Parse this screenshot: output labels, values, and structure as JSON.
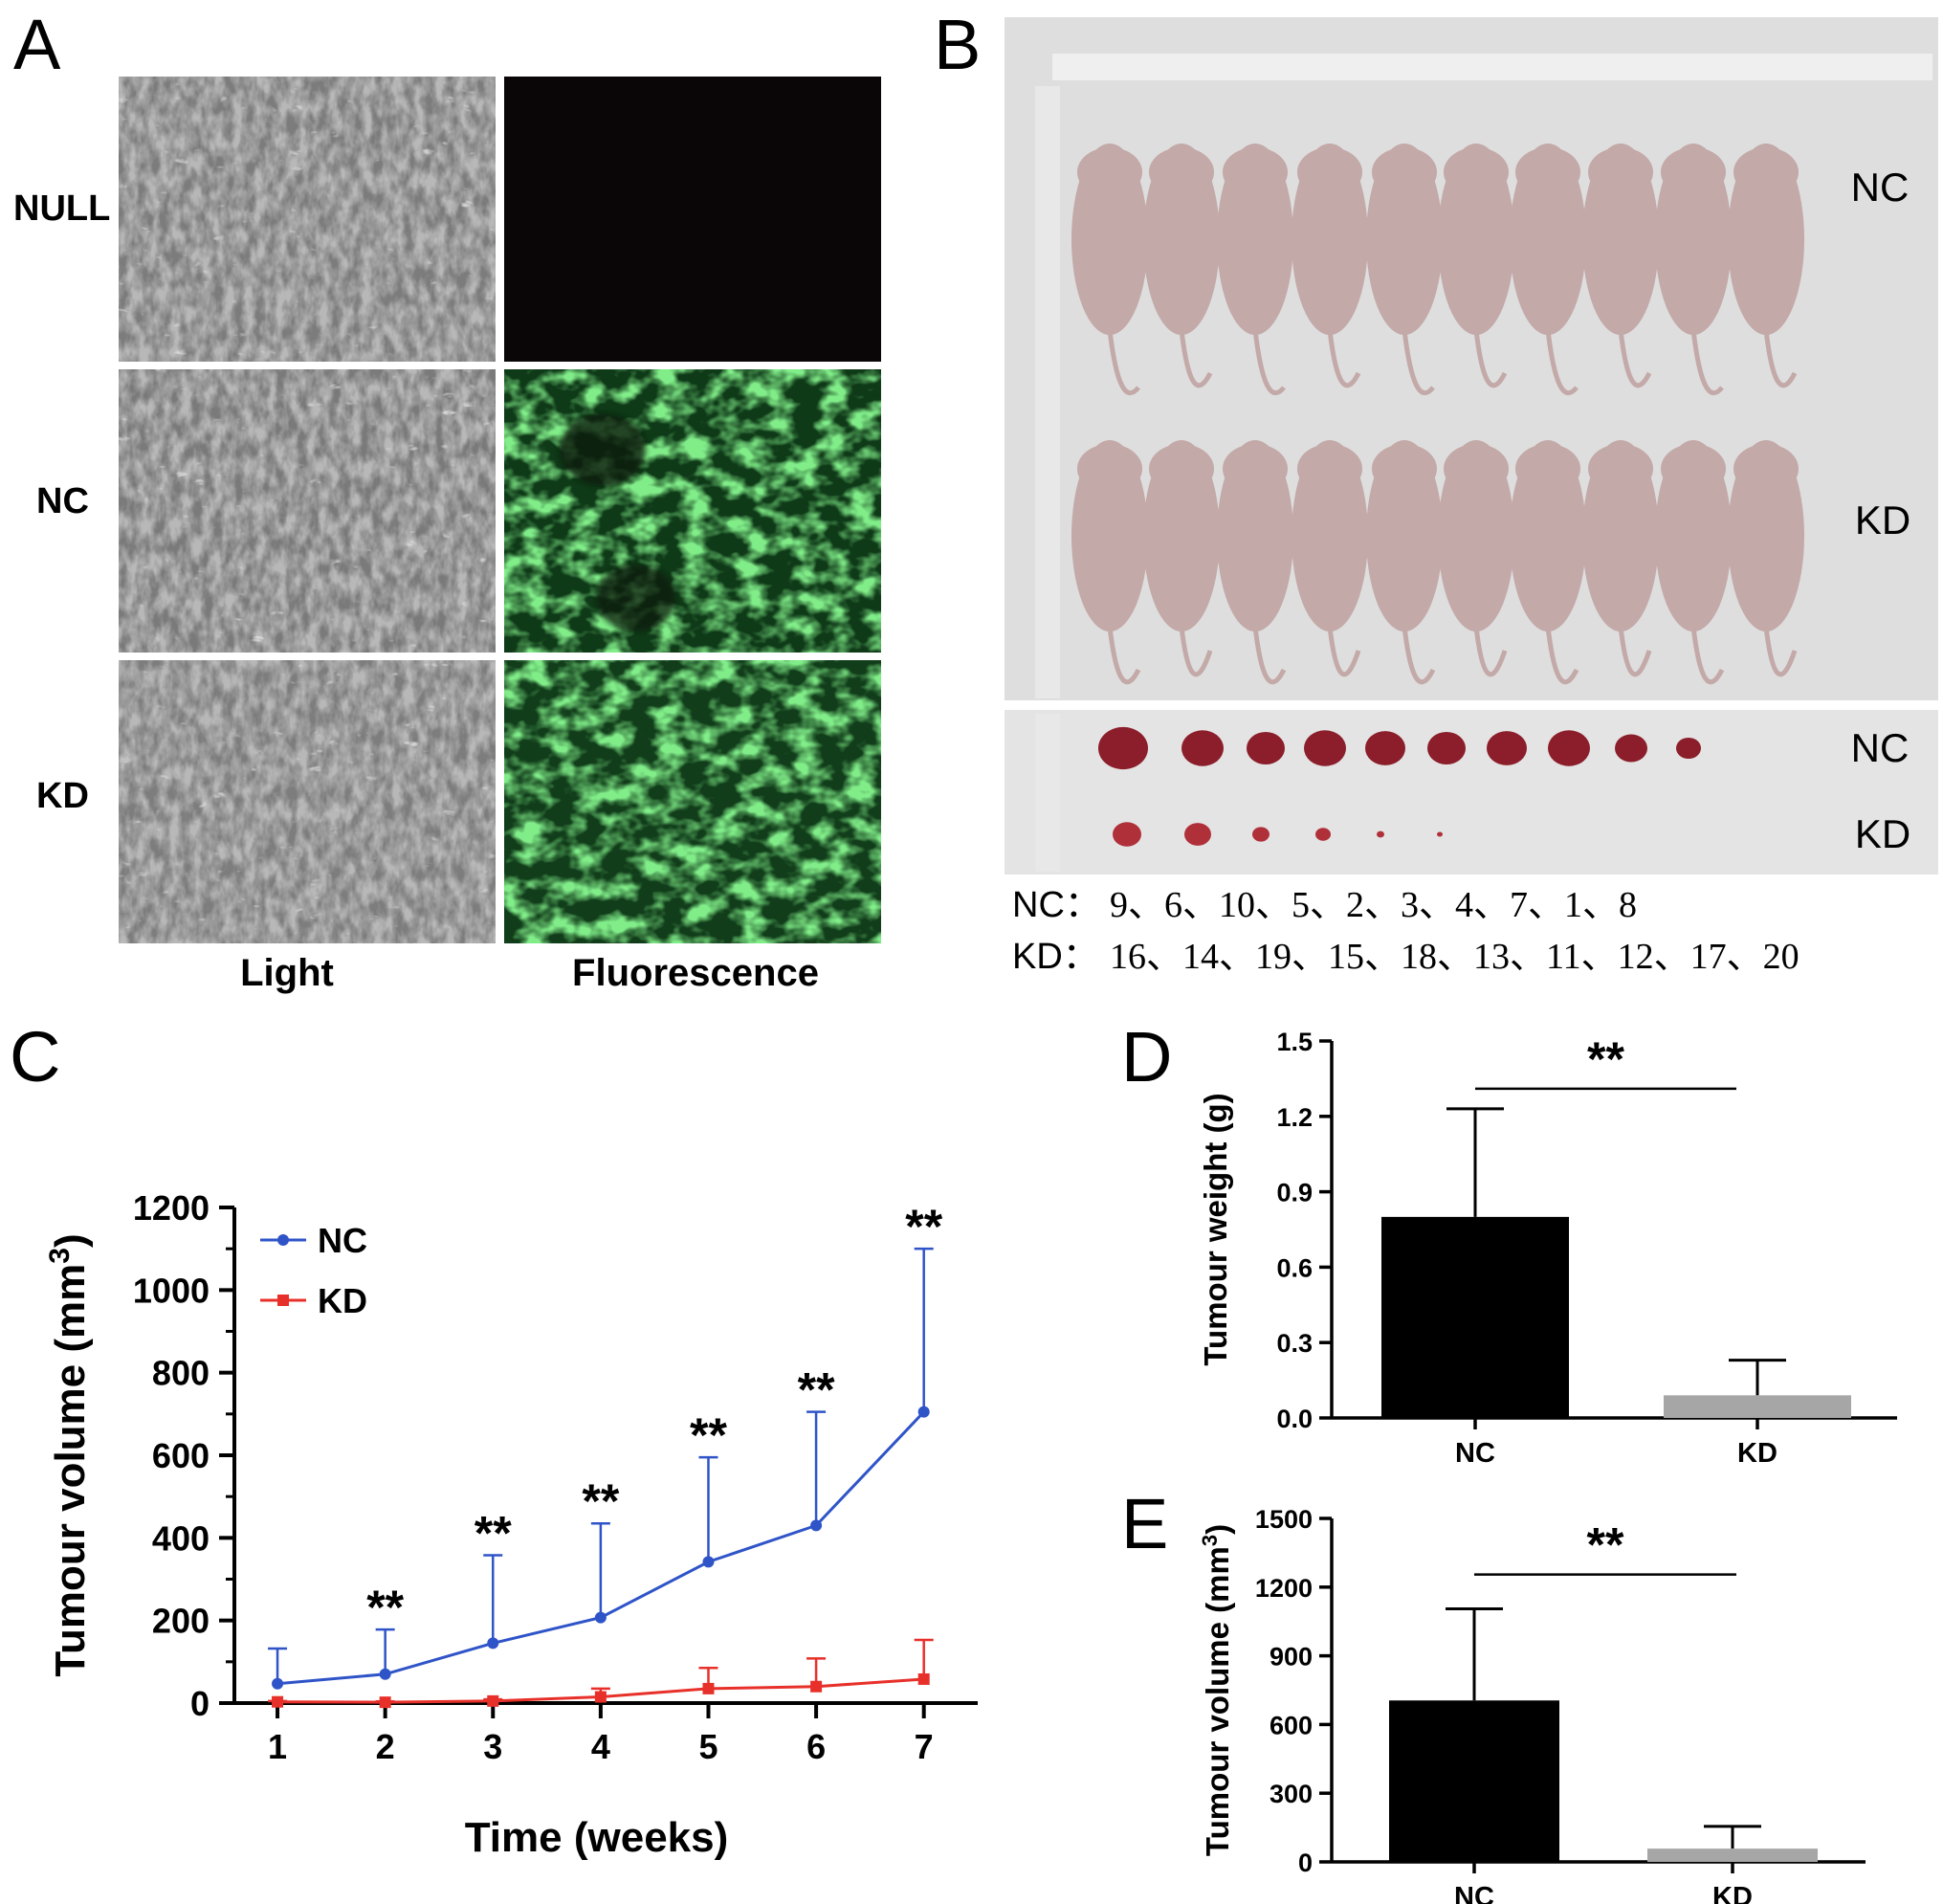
{
  "panel_a": {
    "letter": "A",
    "rows": [
      "NULL",
      "NC",
      "KD"
    ],
    "columns": [
      "Light",
      "Fluorescence"
    ],
    "colors": {
      "light_bg": "#7c7c7c",
      "fluor_null": "#0a0506",
      "fluor_green": "#2fae3c",
      "fluor_dark": "#0f3a18"
    }
  },
  "panel_b": {
    "letter": "B",
    "mice_labels": [
      "NC",
      "KD"
    ],
    "tumour_labels": [
      "NC",
      "KD"
    ],
    "order_prefixes": [
      "NC：",
      "KD："
    ],
    "order_lines": [
      "9、6、10、5、2、3、4、7、1、8",
      "16、14、19、15、18、13、11、12、17、20"
    ],
    "colors": {
      "board": "#dcdcdc",
      "mouse": "#c3a9a8",
      "tumour": "#8b1e2a"
    }
  },
  "chart_data": [
    {
      "panel": "C",
      "type": "line",
      "xlabel": "Time (weeks)",
      "ylabel_prefix": "Tumour volume (mm",
      "ylabel_sup": "3",
      "ylabel_suffix": ")",
      "x": [
        1,
        2,
        3,
        4,
        5,
        6,
        7
      ],
      "xlim": [
        0.6,
        7.5
      ],
      "ylim": [
        0,
        1200
      ],
      "yticks": [
        0,
        200,
        400,
        600,
        800,
        1000,
        1200
      ],
      "legend": "top-left",
      "series": [
        {
          "name": "NC",
          "color": "#2f54c8",
          "marker": "circle",
          "values": [
            47,
            70,
            145,
            207,
            342,
            430,
            705
          ],
          "error": [
            85,
            108,
            213,
            228,
            253,
            275,
            395
          ]
        },
        {
          "name": "KD",
          "color": "#e8302a",
          "marker": "square",
          "values": [
            3,
            2,
            5,
            15,
            35,
            40,
            58
          ],
          "error": [
            2,
            2,
            4,
            20,
            50,
            68,
            95
          ]
        }
      ],
      "significance": [
        {
          "x": 2,
          "y": 178,
          "label": "**"
        },
        {
          "x": 3,
          "y": 358,
          "label": "**"
        },
        {
          "x": 4,
          "y": 435,
          "label": "**"
        },
        {
          "x": 5,
          "y": 595,
          "label": "**"
        },
        {
          "x": 6,
          "y": 705,
          "label": "**"
        },
        {
          "x": 7,
          "y": 1100,
          "label": "**"
        }
      ]
    },
    {
      "panel": "D",
      "type": "bar",
      "categories": [
        "NC",
        "KD"
      ],
      "values": [
        0.8,
        0.09
      ],
      "error": [
        0.43,
        0.14
      ],
      "colors": [
        "#000000",
        "#a6a6a6"
      ],
      "ylabel": "Tumour weight (g)",
      "ylim": [
        0,
        1.5
      ],
      "yticks": [
        "0.0",
        "0.3",
        "0.6",
        "0.9",
        "1.2",
        "1.5"
      ],
      "significance": {
        "label": "**",
        "y": 1.31
      }
    },
    {
      "panel": "E",
      "type": "bar",
      "categories": [
        "NC",
        "KD"
      ],
      "values": [
        705,
        58
      ],
      "error": [
        400,
        97
      ],
      "colors": [
        "#000000",
        "#a6a6a6"
      ],
      "ylabel_prefix": "Tumour volume (mm",
      "ylabel_sup": "3",
      "ylabel_suffix": ")",
      "ylim": [
        0,
        1500
      ],
      "yticks": [
        "0",
        "300",
        "600",
        "900",
        "1200",
        "1500"
      ],
      "significance": {
        "label": "**",
        "y": 1255
      }
    }
  ]
}
